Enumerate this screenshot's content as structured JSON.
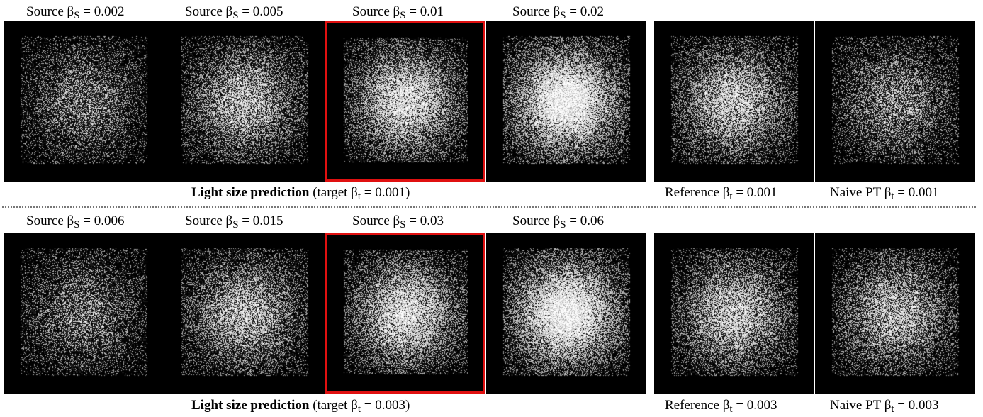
{
  "rows": [
    {
      "sources": [
        {
          "prefix": "Source β",
          "sub": "S",
          "value": " = 0.002",
          "beta": 0.002,
          "highlight": false
        },
        {
          "prefix": "Source β",
          "sub": "S",
          "value": " = 0.005",
          "beta": 0.005,
          "highlight": false
        },
        {
          "prefix": "Source β",
          "sub": "S",
          "value": " = 0.01",
          "beta": 0.01,
          "highlight": true
        },
        {
          "prefix": "Source β",
          "sub": "S",
          "value": " = 0.02",
          "beta": 0.02,
          "highlight": false
        }
      ],
      "caption_bold": "Light size prediction",
      "caption_rest_prefix": " (target β",
      "caption_sub": "t",
      "caption_rest_suffix": " = 0.001)",
      "reference": {
        "prefix": "Reference β",
        "sub": "t",
        "value": " = 0.001",
        "brightness": 0.55
      },
      "naive": {
        "prefix": "Naive PT β",
        "sub": "t",
        "value": " = 0.001",
        "brightness": 0.35
      }
    },
    {
      "sources": [
        {
          "prefix": "Source β",
          "sub": "S",
          "value": " = 0.006",
          "beta": 0.006,
          "highlight": false
        },
        {
          "prefix": "Source β",
          "sub": "S",
          "value": " = 0.015",
          "beta": 0.015,
          "highlight": false
        },
        {
          "prefix": "Source β",
          "sub": "S",
          "value": " = 0.03",
          "beta": 0.03,
          "highlight": true
        },
        {
          "prefix": "Source β",
          "sub": "S",
          "value": " = 0.06",
          "beta": 0.06,
          "highlight": false
        }
      ],
      "caption_bold": "Light size prediction",
      "caption_rest_prefix": " (target β",
      "caption_sub": "t",
      "caption_rest_suffix": " = 0.003)",
      "reference": {
        "prefix": "Reference β",
        "sub": "t",
        "value": " = 0.003",
        "brightness": 0.55
      },
      "naive": {
        "prefix": "Naive PT β",
        "sub": "t",
        "value": " = 0.003",
        "brightness": 0.5
      }
    }
  ]
}
